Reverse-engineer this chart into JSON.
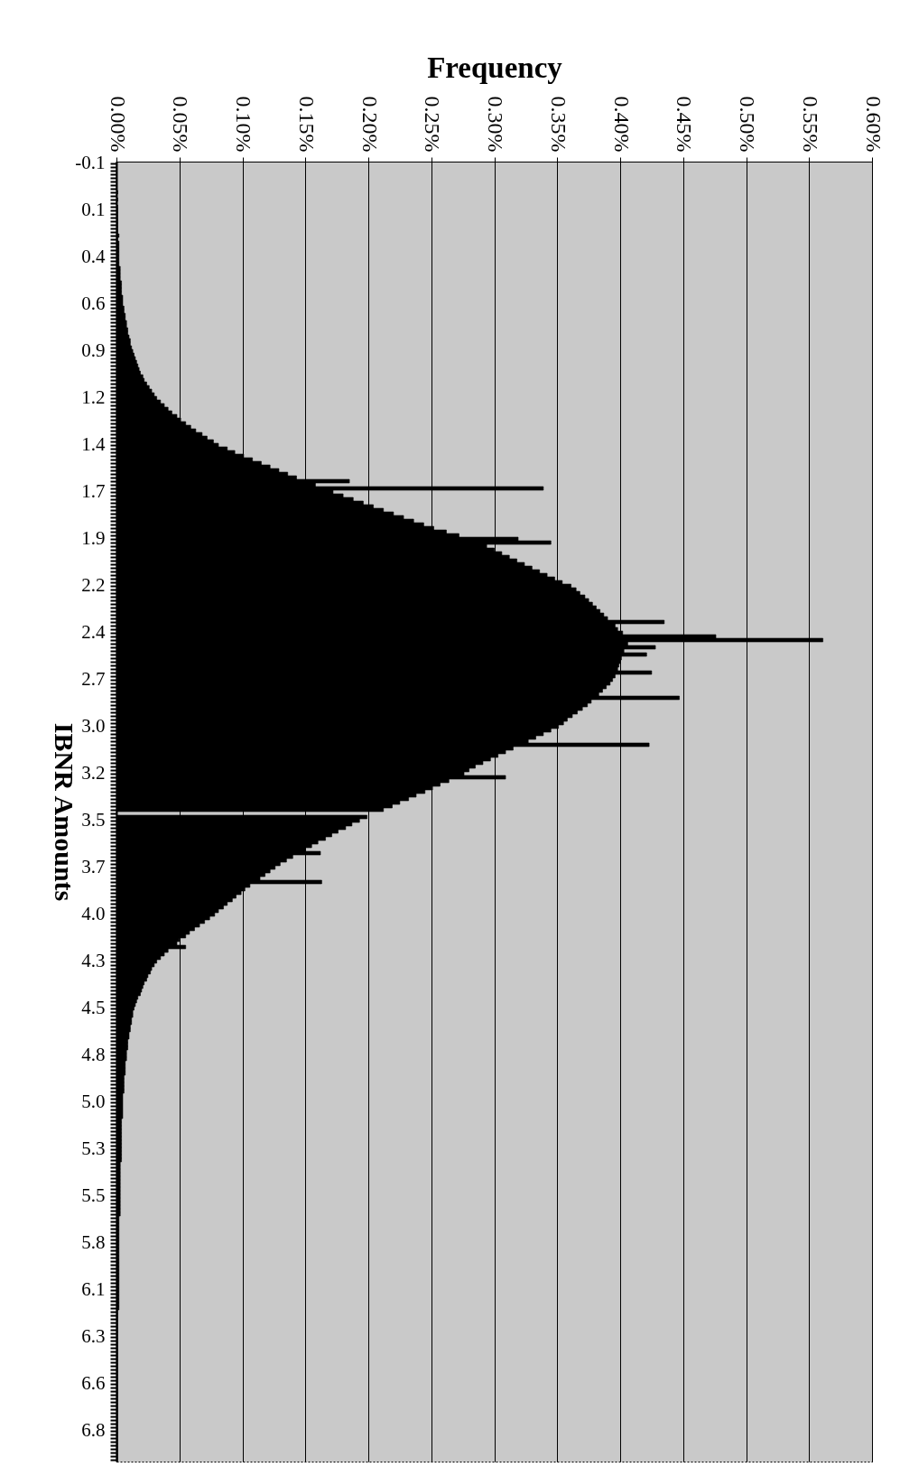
{
  "chart_data": {
    "type": "bar",
    "orientation": "horizontal",
    "xlabel": "Frequency",
    "ylabel": "IBNR Amounts",
    "color": "#000000",
    "grid": "x",
    "xlim": [
      0,
      0.6
    ],
    "xticks": [
      {
        "value": 0,
        "label": "0.00%"
      },
      {
        "value": 0.05,
        "label": "0.05%"
      },
      {
        "value": 0.1,
        "label": "0.10%"
      },
      {
        "value": 0.15,
        "label": "0.15%"
      },
      {
        "value": 0.2,
        "label": "0.20%"
      },
      {
        "value": 0.25,
        "label": "0.25%"
      },
      {
        "value": 0.3,
        "label": "0.30%"
      },
      {
        "value": 0.35,
        "label": "0.35%"
      },
      {
        "value": 0.4,
        "label": "0.40%"
      },
      {
        "value": 0.45,
        "label": "0.45%"
      },
      {
        "value": 0.5,
        "label": "0.50%"
      },
      {
        "value": 0.55,
        "label": "0.55%"
      },
      {
        "value": 0.6,
        "label": "0.60%"
      }
    ],
    "categories": [
      "-0.1",
      null,
      null,
      null,
      null,
      null,
      null,
      null,
      null,
      null,
      null,
      null,
      null,
      "0.1",
      null,
      null,
      null,
      null,
      null,
      null,
      null,
      null,
      null,
      null,
      null,
      null,
      "0.4",
      null,
      null,
      null,
      null,
      null,
      null,
      null,
      null,
      null,
      null,
      null,
      null,
      "0.6",
      null,
      null,
      null,
      null,
      null,
      null,
      null,
      null,
      null,
      null,
      null,
      null,
      "0.9",
      null,
      null,
      null,
      null,
      null,
      null,
      null,
      null,
      null,
      null,
      null,
      null,
      "1.2",
      null,
      null,
      null,
      null,
      null,
      null,
      null,
      null,
      null,
      null,
      null,
      null,
      "1.4",
      null,
      null,
      null,
      null,
      null,
      null,
      null,
      null,
      null,
      null,
      null,
      null,
      "1.7",
      null,
      null,
      null,
      null,
      null,
      null,
      null,
      null,
      null,
      null,
      null,
      null,
      "1.9",
      null,
      null,
      null,
      null,
      null,
      null,
      null,
      null,
      null,
      null,
      null,
      null,
      "2.2",
      null,
      null,
      null,
      null,
      null,
      null,
      null,
      null,
      null,
      null,
      null,
      null,
      "2.4",
      null,
      null,
      null,
      null,
      null,
      null,
      null,
      null,
      null,
      null,
      null,
      null,
      "2.7",
      null,
      null,
      null,
      null,
      null,
      null,
      null,
      null,
      null,
      null,
      null,
      null,
      "3.0",
      null,
      null,
      null,
      null,
      null,
      null,
      null,
      null,
      null,
      null,
      null,
      null,
      "3.2",
      null,
      null,
      null,
      null,
      null,
      null,
      null,
      null,
      null,
      null,
      null,
      null,
      "3.5",
      null,
      null,
      null,
      null,
      null,
      null,
      null,
      null,
      null,
      null,
      null,
      null,
      "3.7",
      null,
      null,
      null,
      null,
      null,
      null,
      null,
      null,
      null,
      null,
      null,
      null,
      "4.0",
      null,
      null,
      null,
      null,
      null,
      null,
      null,
      null,
      null,
      null,
      null,
      null,
      "4.3",
      null,
      null,
      null,
      null,
      null,
      null,
      null,
      null,
      null,
      null,
      null,
      null,
      "4.5",
      null,
      null,
      null,
      null,
      null,
      null,
      null,
      null,
      null,
      null,
      null,
      null,
      "4.8",
      null,
      null,
      null,
      null,
      null,
      null,
      null,
      null,
      null,
      null,
      null,
      null,
      "5.0",
      null,
      null,
      null,
      null,
      null,
      null,
      null,
      null,
      null,
      null,
      null,
      null,
      "5.3",
      null,
      null,
      null,
      null,
      null,
      null,
      null,
      null,
      null,
      null,
      null,
      null,
      "5.5",
      null,
      null,
      null,
      null,
      null,
      null,
      null,
      null,
      null,
      null,
      null,
      null,
      "5.8",
      null,
      null,
      null,
      null,
      null,
      null,
      null,
      null,
      null,
      null,
      null,
      null,
      "6.1",
      null,
      null,
      null,
      null,
      null,
      null,
      null,
      null,
      null,
      null,
      null,
      null,
      "6.3",
      null,
      null,
      null,
      null,
      null,
      null,
      null,
      null,
      null,
      null,
      null,
      null,
      "6.6",
      null,
      null,
      null,
      null,
      null,
      null,
      null,
      null,
      null,
      null,
      null,
      null,
      "6.8",
      null,
      null,
      null,
      null,
      null,
      null,
      null,
      null
    ],
    "values": [
      0,
      0,
      0,
      0,
      0,
      0,
      0,
      0,
      0.001,
      0,
      0.001,
      0,
      0.001,
      0.001,
      0.001,
      0.001,
      0.001,
      0.001,
      0.001,
      0.001,
      0.002,
      0.001,
      0.002,
      0.002,
      0.002,
      0.002,
      0.002,
      0.002,
      0.002,
      0.003,
      0.003,
      0.003,
      0.003,
      0.004,
      0.004,
      0.004,
      0.004,
      0.005,
      0.005,
      0.005,
      0.006,
      0.006,
      0.007,
      0.007,
      0.008,
      0.008,
      0.009,
      0.009,
      0.01,
      0.011,
      0.011,
      0.012,
      0.013,
      0.014,
      0.015,
      0.016,
      0.017,
      0.018,
      0.019,
      0.021,
      0.022,
      0.024,
      0.026,
      0.028,
      0.03,
      0.032,
      0.035,
      0.038,
      0.041,
      0.044,
      0.048,
      0.051,
      0.055,
      0.059,
      0.063,
      0.068,
      0.072,
      0.077,
      0.081,
      0.088,
      0.094,
      0.101,
      0.108,
      0.115,
      0.122,
      0.129,
      0.136,
      0.143,
      0.185,
      0.158,
      0.339,
      0.172,
      0.18,
      0.188,
      0.196,
      0.204,
      0.212,
      0.22,
      0.228,
      0.236,
      0.244,
      0.252,
      0.262,
      0.272,
      0.319,
      0.345,
      0.294,
      0.3,
      0.306,
      0.312,
      0.318,
      0.324,
      0.33,
      0.336,
      0.342,
      0.348,
      0.354,
      0.361,
      0.365,
      0.368,
      0.372,
      0.375,
      0.378,
      0.381,
      0.384,
      0.387,
      0.39,
      0.435,
      0.396,
      0.398,
      0.402,
      0.476,
      0.561,
      0.406,
      0.428,
      0.403,
      0.421,
      0.401,
      0.4,
      0.399,
      0.398,
      0.425,
      0.396,
      0.394,
      0.392,
      0.389,
      0.386,
      0.383,
      0.447,
      0.377,
      0.374,
      0.37,
      0.366,
      0.362,
      0.358,
      0.355,
      0.351,
      0.345,
      0.339,
      0.333,
      0.327,
      0.423,
      0.315,
      0.309,
      0.303,
      0.297,
      0.291,
      0.285,
      0.28,
      0.276,
      0.309,
      0.264,
      0.257,
      0.251,
      0.245,
      0.238,
      0.232,
      0.225,
      0.219,
      0.212,
      0,
      0.199,
      0.193,
      0.187,
      0.182,
      0.176,
      0.171,
      0.166,
      0.16,
      0.155,
      0.15,
      0.162,
      0.14,
      0.135,
      0.13,
      0.126,
      0.122,
      0.118,
      0.114,
      0.163,
      0.106,
      0.102,
      0.099,
      0.095,
      0.092,
      0.088,
      0.085,
      0.081,
      0.078,
      0.074,
      0.07,
      0.066,
      0.062,
      0.058,
      0.055,
      0.05,
      0.048,
      0.055,
      0.041,
      0.038,
      0.035,
      0.032,
      0.03,
      0.028,
      0.027,
      0.025,
      0.024,
      0.022,
      0.021,
      0.02,
      0.019,
      0.017,
      0.016,
      0.015,
      0.014,
      0.013,
      0.013,
      0.012,
      0.012,
      0.011,
      0.011,
      0.01,
      0.01,
      0.009,
      0.009,
      0.009,
      0.008,
      0.008,
      0.008,
      0.007,
      0.007,
      0.007,
      0.007,
      0.006,
      0.006,
      0.006,
      0.006,
      0.006,
      0.005,
      0.005,
      0.005,
      0.005,
      0.005,
      0.005,
      0.005,
      0.004,
      0.004,
      0.004,
      0.004,
      0.004,
      0.004,
      0.004,
      0.004,
      0.004,
      0.004,
      0.004,
      0.004,
      0.003,
      0.003,
      0.003,
      0.003,
      0.003,
      0.003,
      0.003,
      0.003,
      0.003,
      0.003,
      0.003,
      0.003,
      0.003,
      0.003,
      0.003,
      0.002,
      0.002,
      0.002,
      0.002,
      0.002,
      0.002,
      0.002,
      0.002,
      0.002,
      0.002,
      0.002,
      0.002,
      0.002,
      0.002,
      0.002,
      0.002,
      0.002,
      0.002,
      0.002,
      0.002,
      0.002,
      0.002,
      0.002,
      0.002,
      0.002,
      0.002,
      0.001,
      0.001,
      0.001,
      0.001,
      0.001,
      0.001,
      0.001,
      0.001,
      0.001,
      0.001,
      0.001,
      0.001,
      0.001,
      0.001,
      0.001,
      0.001,
      0.001,
      0.001,
      0.001,
      0.001,
      0.001,
      0.001,
      0.001,
      0.001,
      0.001,
      0.001,
      0.001,
      0.001,
      0.001,
      0.001,
      0.001,
      0.001,
      0.001,
      0.001,
      0.001,
      0.001,
      0.001,
      0.001,
      0.001,
      0.001,
      0.001,
      0.001
    ]
  }
}
